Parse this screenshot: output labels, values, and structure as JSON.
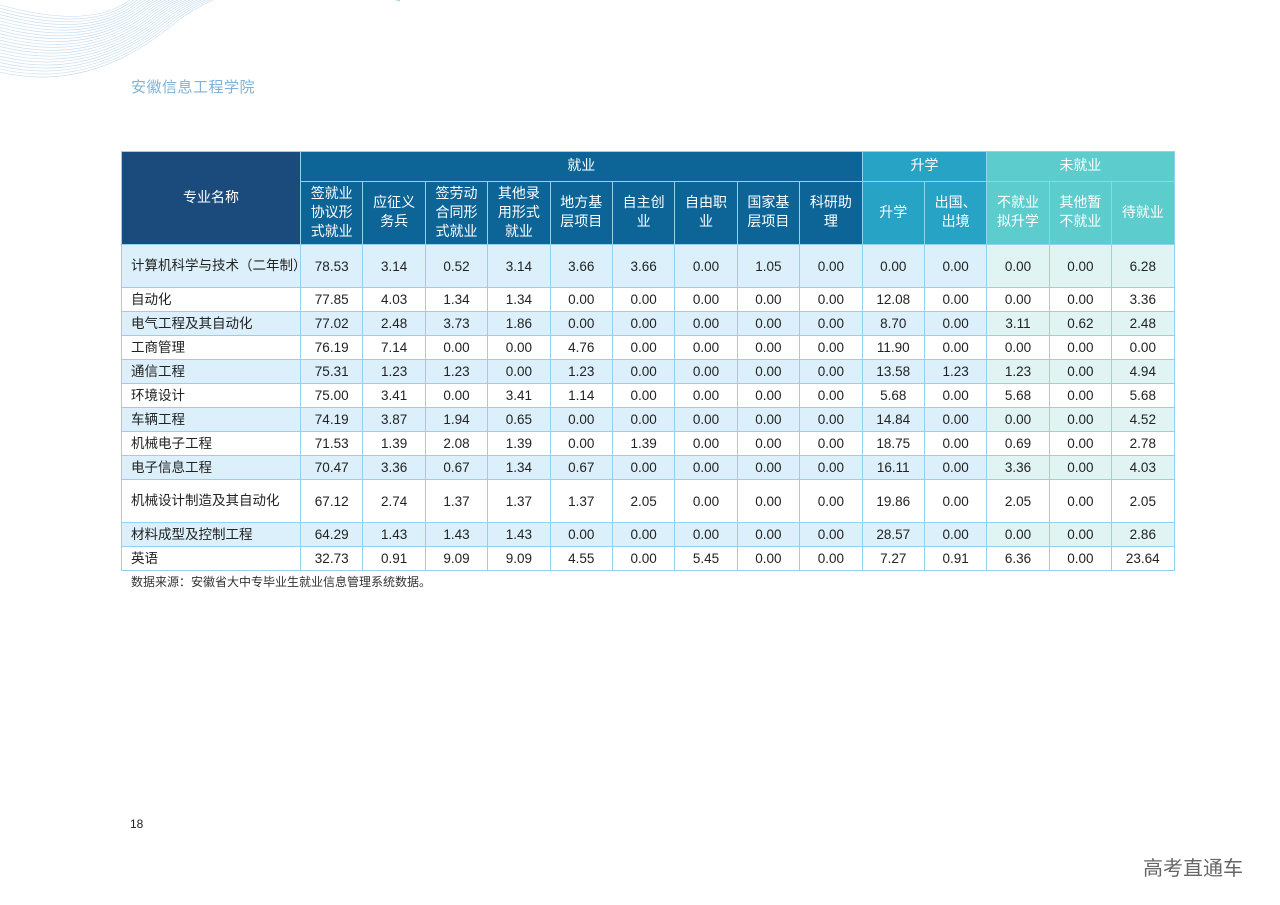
{
  "header": {
    "school": "安徽信息工程学院"
  },
  "table": {
    "major_header": "专业名称",
    "groups": [
      {
        "label": "就业",
        "color": "#0c6497"
      },
      {
        "label": "升学",
        "color": "#27a3c6"
      },
      {
        "label": "未就业",
        "color": "#5ccccc"
      }
    ],
    "columns": [
      "签就业协议形式就业",
      "应征义务兵",
      "签劳动合同形式就业",
      "其他录用形式就业",
      "地方基层项目",
      "自主创业",
      "自由职业",
      "国家基层项目",
      "科研助理",
      "升学",
      "出国、出境",
      "不就业拟升学",
      "其他暂不就业",
      "待就业"
    ],
    "rows": [
      {
        "name": "计算机科学与技术（二年制）",
        "values": [
          "78.53",
          "3.14",
          "0.52",
          "3.14",
          "3.66",
          "3.66",
          "0.00",
          "1.05",
          "0.00",
          "0.00",
          "0.00",
          "0.00",
          "0.00",
          "6.28"
        ]
      },
      {
        "name": "自动化",
        "values": [
          "77.85",
          "4.03",
          "1.34",
          "1.34",
          "0.00",
          "0.00",
          "0.00",
          "0.00",
          "0.00",
          "12.08",
          "0.00",
          "0.00",
          "0.00",
          "3.36"
        ]
      },
      {
        "name": "电气工程及其自动化",
        "values": [
          "77.02",
          "2.48",
          "3.73",
          "1.86",
          "0.00",
          "0.00",
          "0.00",
          "0.00",
          "0.00",
          "8.70",
          "0.00",
          "3.11",
          "0.62",
          "2.48"
        ]
      },
      {
        "name": "工商管理",
        "values": [
          "76.19",
          "7.14",
          "0.00",
          "0.00",
          "4.76",
          "0.00",
          "0.00",
          "0.00",
          "0.00",
          "11.90",
          "0.00",
          "0.00",
          "0.00",
          "0.00"
        ]
      },
      {
        "name": "通信工程",
        "values": [
          "75.31",
          "1.23",
          "1.23",
          "0.00",
          "1.23",
          "0.00",
          "0.00",
          "0.00",
          "0.00",
          "13.58",
          "1.23",
          "1.23",
          "0.00",
          "4.94"
        ]
      },
      {
        "name": "环境设计",
        "values": [
          "75.00",
          "3.41",
          "0.00",
          "3.41",
          "1.14",
          "0.00",
          "0.00",
          "0.00",
          "0.00",
          "5.68",
          "0.00",
          "5.68",
          "0.00",
          "5.68"
        ]
      },
      {
        "name": "车辆工程",
        "values": [
          "74.19",
          "3.87",
          "1.94",
          "0.65",
          "0.00",
          "0.00",
          "0.00",
          "0.00",
          "0.00",
          "14.84",
          "0.00",
          "0.00",
          "0.00",
          "4.52"
        ]
      },
      {
        "name": "机械电子工程",
        "values": [
          "71.53",
          "1.39",
          "2.08",
          "1.39",
          "0.00",
          "1.39",
          "0.00",
          "0.00",
          "0.00",
          "18.75",
          "0.00",
          "0.69",
          "0.00",
          "2.78"
        ]
      },
      {
        "name": "电子信息工程",
        "values": [
          "70.47",
          "3.36",
          "0.67",
          "1.34",
          "0.67",
          "0.00",
          "0.00",
          "0.00",
          "0.00",
          "16.11",
          "0.00",
          "3.36",
          "0.00",
          "4.03"
        ]
      },
      {
        "name": "机械设计制造及其自动化",
        "values": [
          "67.12",
          "2.74",
          "1.37",
          "1.37",
          "1.37",
          "2.05",
          "0.00",
          "0.00",
          "0.00",
          "19.86",
          "0.00",
          "2.05",
          "0.00",
          "2.05"
        ]
      },
      {
        "name": "材料成型及控制工程",
        "values": [
          "64.29",
          "1.43",
          "1.43",
          "1.43",
          "0.00",
          "0.00",
          "0.00",
          "0.00",
          "0.00",
          "28.57",
          "0.00",
          "0.00",
          "0.00",
          "2.86"
        ]
      },
      {
        "name": "英语",
        "values": [
          "32.73",
          "0.91",
          "9.09",
          "9.09",
          "4.55",
          "0.00",
          "5.45",
          "0.00",
          "0.00",
          "7.27",
          "0.91",
          "6.36",
          "0.00",
          "23.64"
        ]
      }
    ]
  },
  "footnote": "数据来源：安徽省大中专毕业生就业信息管理系统数据。",
  "page_number": "18",
  "watermark": "高考直通车"
}
